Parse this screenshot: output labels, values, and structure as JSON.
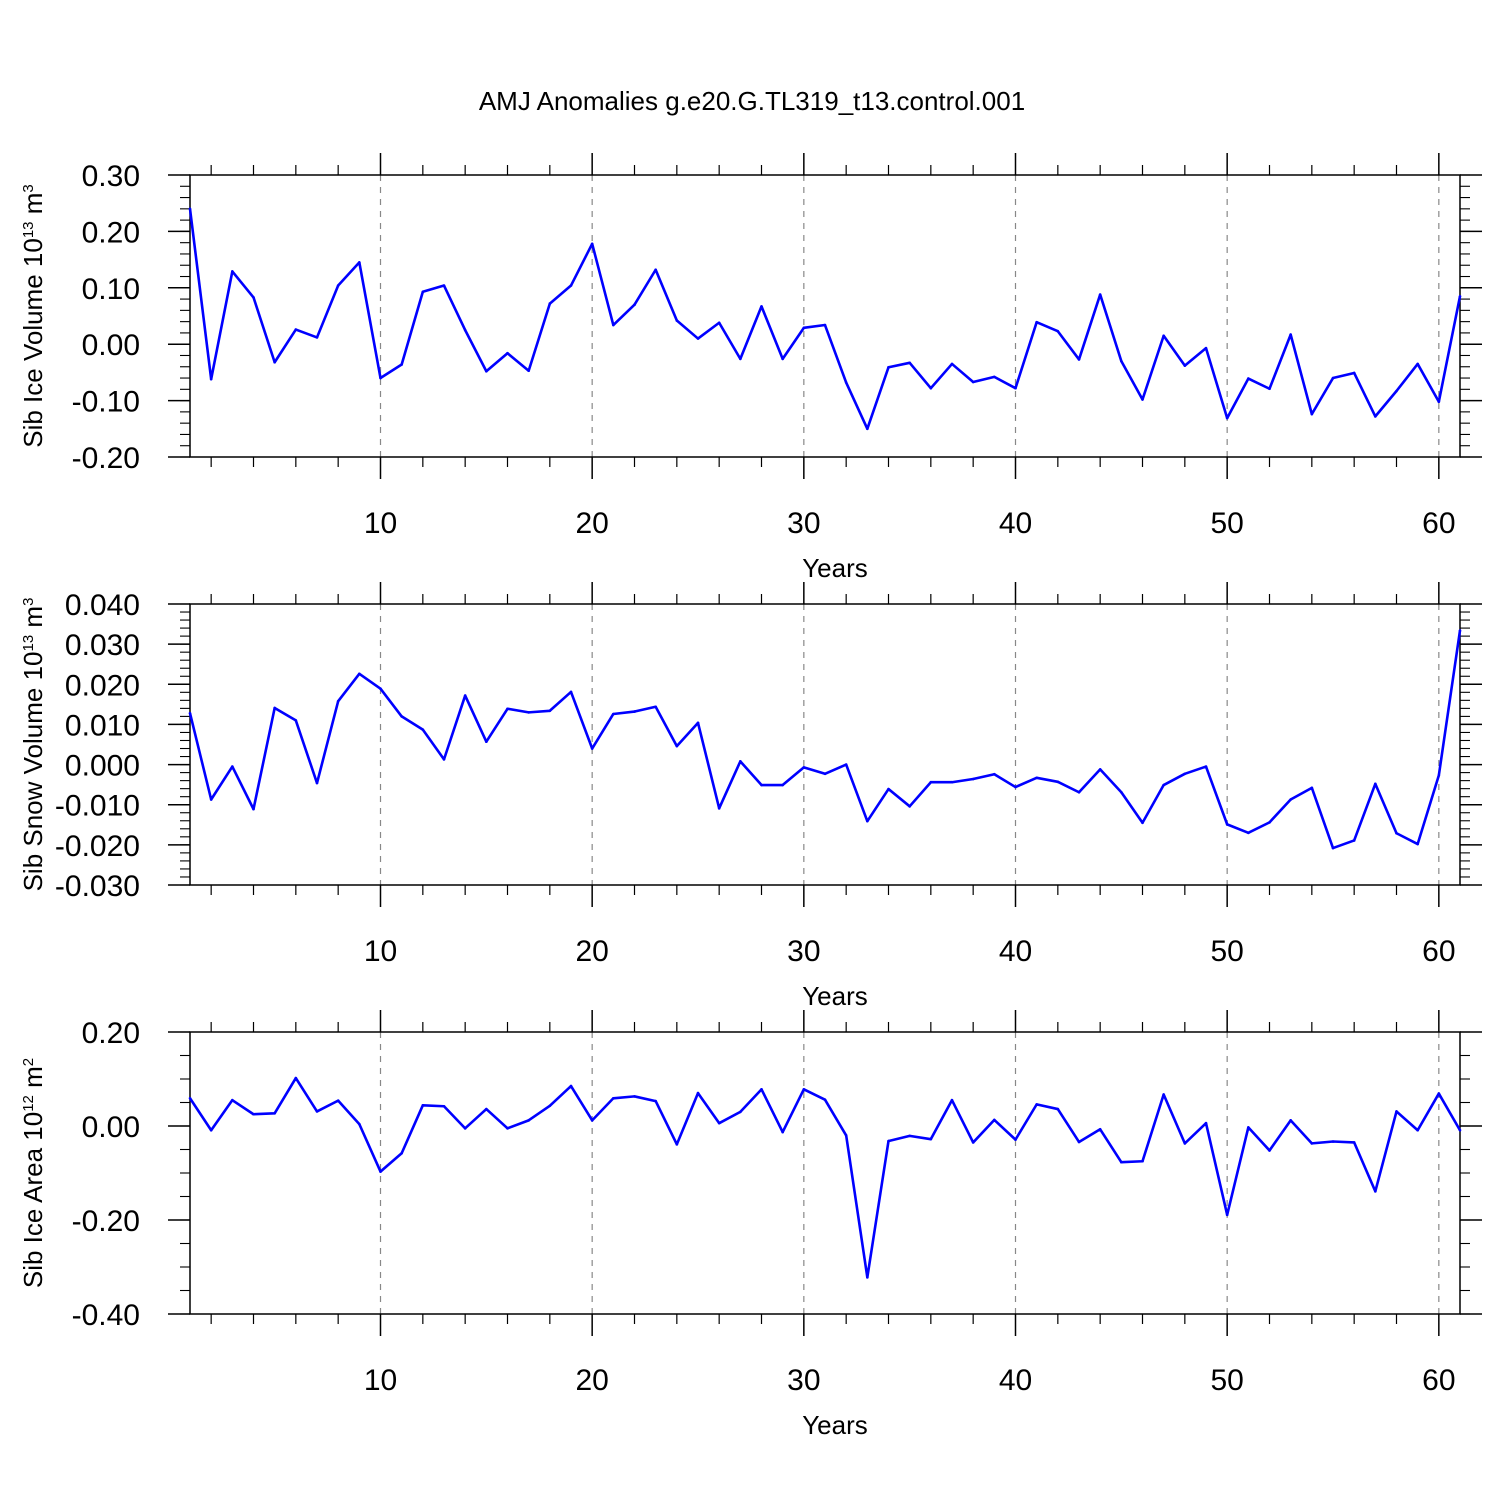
{
  "figure_title": "AMJ Anomalies g.e20.G.TL319_t13.control.001",
  "colors": {
    "line": "#0000ff",
    "axis": "#000000",
    "grid": "#888888"
  },
  "chart_data": [
    {
      "type": "line",
      "xlabel": "Years",
      "ylabel": {
        "text": "Sib Ice Volume 10",
        "exp": "13",
        "unit": " m",
        "unit_exp": "3"
      },
      "xlim": [
        1,
        61
      ],
      "ylim": [
        -0.2,
        0.3
      ],
      "xticks": [
        10,
        20,
        30,
        40,
        50,
        60
      ],
      "xtick_labels": [
        "10",
        "20",
        "30",
        "40",
        "50",
        "60"
      ],
      "yticks": [
        -0.2,
        -0.1,
        0.0,
        0.1,
        0.2,
        0.3
      ],
      "ytick_labels": [
        "-0.20",
        "-0.10",
        "0.00",
        "0.10",
        "0.20",
        "0.30"
      ],
      "yminor_step": 0.02,
      "x": [
        1,
        2,
        3,
        4,
        5,
        6,
        7,
        8,
        9,
        10,
        11,
        12,
        13,
        14,
        15,
        16,
        17,
        18,
        19,
        20,
        21,
        22,
        23,
        24,
        25,
        26,
        27,
        28,
        29,
        30,
        31,
        32,
        33,
        34,
        35,
        36,
        37,
        38,
        39,
        40,
        41,
        42,
        43,
        44,
        45,
        46,
        47,
        48,
        49,
        50,
        51,
        52,
        53,
        54,
        55,
        56,
        57,
        58,
        59,
        60,
        61
      ],
      "series": [
        {
          "name": "Sib Ice Volume",
          "values": [
            0.24,
            -0.062,
            0.129,
            0.083,
            -0.032,
            0.026,
            0.012,
            0.104,
            0.145,
            -0.06,
            -0.036,
            0.093,
            0.104,
            0.025,
            -0.048,
            -0.016,
            -0.047,
            0.072,
            0.104,
            0.178,
            0.034,
            0.07,
            0.132,
            0.042,
            0.01,
            0.038,
            -0.026,
            0.067,
            -0.026,
            0.029,
            0.034,
            -0.068,
            -0.15,
            -0.041,
            -0.033,
            -0.078,
            -0.035,
            -0.067,
            -0.058,
            -0.078,
            0.039,
            0.023,
            -0.027,
            0.088,
            -0.03,
            -0.098,
            0.015,
            -0.038,
            -0.007,
            -0.131,
            -0.061,
            -0.079,
            0.017,
            -0.124,
            -0.06,
            -0.051,
            -0.128,
            -0.083,
            -0.035,
            -0.102,
            0.085
          ]
        }
      ]
    },
    {
      "type": "line",
      "xlabel": "Years",
      "ylabel": {
        "text": "Sib Snow Volume 10",
        "exp": "13",
        "unit": " m",
        "unit_exp": "3"
      },
      "xlim": [
        1,
        61
      ],
      "ylim": [
        -0.03,
        0.04
      ],
      "xticks": [
        10,
        20,
        30,
        40,
        50,
        60
      ],
      "xtick_labels": [
        "10",
        "20",
        "30",
        "40",
        "50",
        "60"
      ],
      "yticks": [
        -0.03,
        -0.02,
        -0.01,
        0.0,
        0.01,
        0.02,
        0.03,
        0.04
      ],
      "ytick_labels": [
        "-0.030",
        "-0.020",
        "-0.010",
        "0.000",
        "0.010",
        "0.020",
        "0.030",
        "0.040"
      ],
      "yminor_step": 0.002,
      "x": [
        1,
        2,
        3,
        4,
        5,
        6,
        7,
        8,
        9,
        10,
        11,
        12,
        13,
        14,
        15,
        16,
        17,
        18,
        19,
        20,
        21,
        22,
        23,
        24,
        25,
        26,
        27,
        28,
        29,
        30,
        31,
        32,
        33,
        34,
        35,
        36,
        37,
        38,
        39,
        40,
        41,
        42,
        43,
        44,
        45,
        46,
        47,
        48,
        49,
        50,
        51,
        52,
        53,
        54,
        55,
        56,
        57,
        58,
        59,
        60,
        61
      ],
      "series": [
        {
          "name": "Sib Snow Volume",
          "values": [
            0.0128,
            -0.0087,
            -0.0005,
            -0.0111,
            0.0141,
            0.011,
            -0.0046,
            0.0158,
            0.0226,
            0.0189,
            0.012,
            0.0087,
            0.0013,
            0.0172,
            0.0057,
            0.0139,
            0.013,
            0.0134,
            0.0181,
            0.004,
            0.0126,
            0.0132,
            0.0144,
            0.0046,
            0.0104,
            -0.0109,
            0.0008,
            -0.0051,
            -0.0051,
            -0.0007,
            -0.0023,
            0.0,
            -0.0141,
            -0.0061,
            -0.0104,
            -0.0044,
            -0.0044,
            -0.0036,
            -0.0024,
            -0.0056,
            -0.0033,
            -0.0043,
            -0.0069,
            -0.0012,
            -0.0069,
            -0.0145,
            -0.0051,
            -0.0023,
            -0.0005,
            -0.0149,
            -0.017,
            -0.0144,
            -0.0087,
            -0.0058,
            -0.0208,
            -0.0189,
            -0.0048,
            -0.0171,
            -0.0198,
            -0.0027,
            0.0334
          ]
        }
      ]
    },
    {
      "type": "line",
      "xlabel": "Years",
      "ylabel": {
        "text": "Sib Ice Area 10",
        "exp": "12",
        "unit": " m",
        "unit_exp": "2"
      },
      "xlim": [
        1,
        61
      ],
      "ylim": [
        -0.4,
        0.2
      ],
      "xticks": [
        10,
        20,
        30,
        40,
        50,
        60
      ],
      "xtick_labels": [
        "10",
        "20",
        "30",
        "40",
        "50",
        "60"
      ],
      "yticks": [
        -0.4,
        -0.2,
        0.0,
        0.2
      ],
      "ytick_labels": [
        "-0.40",
        "-0.20",
        "0.00",
        "0.20"
      ],
      "yminor_step": 0.05,
      "x": [
        1,
        2,
        3,
        4,
        5,
        6,
        7,
        8,
        9,
        10,
        11,
        12,
        13,
        14,
        15,
        16,
        17,
        18,
        19,
        20,
        21,
        22,
        23,
        24,
        25,
        26,
        27,
        28,
        29,
        30,
        31,
        32,
        33,
        34,
        35,
        36,
        37,
        38,
        39,
        40,
        41,
        42,
        43,
        44,
        45,
        46,
        47,
        48,
        49,
        50,
        51,
        52,
        53,
        54,
        55,
        56,
        57,
        58,
        59,
        60,
        61
      ],
      "series": [
        {
          "name": "Sib Ice Area",
          "values": [
            0.059,
            -0.009,
            0.055,
            0.025,
            0.027,
            0.102,
            0.031,
            0.054,
            0.004,
            -0.097,
            -0.058,
            0.044,
            0.042,
            -0.005,
            0.036,
            -0.005,
            0.012,
            0.043,
            0.085,
            0.012,
            0.059,
            0.063,
            0.053,
            -0.039,
            0.07,
            0.006,
            0.03,
            0.078,
            -0.013,
            0.078,
            0.056,
            -0.02,
            -0.322,
            -0.032,
            -0.021,
            -0.028,
            0.055,
            -0.035,
            0.013,
            -0.029,
            0.046,
            0.036,
            -0.034,
            -0.007,
            -0.077,
            -0.075,
            0.067,
            -0.037,
            0.006,
            -0.189,
            -0.003,
            -0.052,
            0.012,
            -0.037,
            -0.033,
            -0.035,
            -0.139,
            0.031,
            -0.009,
            0.069,
            -0.009
          ]
        }
      ]
    }
  ]
}
